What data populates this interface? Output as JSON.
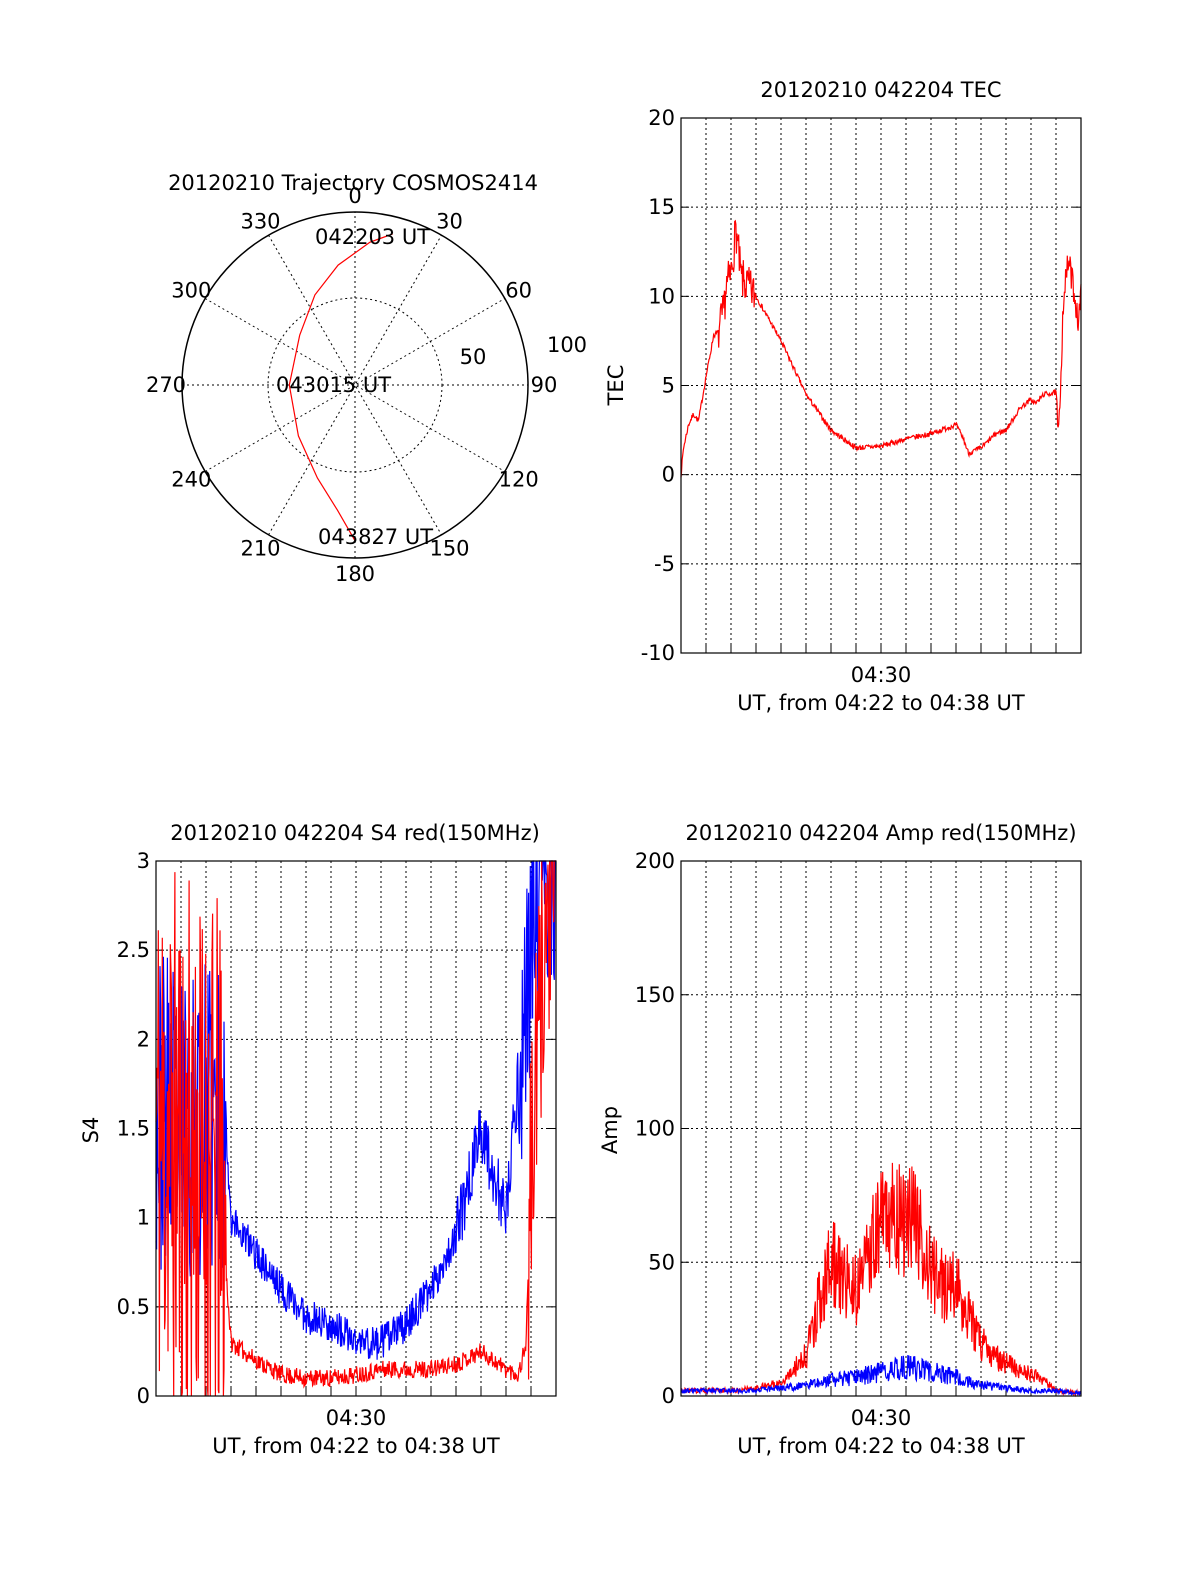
{
  "chart_data": [
    {
      "type": "polar",
      "id": "trajectory",
      "title": "20120210 Trajectory COSMOS2414",
      "azimuth_labels": [
        "0",
        "30",
        "60",
        "90",
        "120",
        "150",
        "180",
        "210",
        "240",
        "270",
        "300",
        "330"
      ],
      "radius_labels": [
        "50",
        "100"
      ],
      "series": [
        {
          "color": "#ff0000",
          "az": [
            14,
            6,
            -8,
            -24,
            -48,
            -90,
            -132,
            -158,
            -172,
            -180
          ],
          "r": [
            90,
            83,
            70,
            57,
            43,
            38,
            44,
            58,
            73,
            90
          ]
        }
      ],
      "annotations": [
        "042203 UT",
        "043015 UT",
        "043827 UT"
      ]
    },
    {
      "type": "line",
      "id": "tec",
      "title": "20120210 042204 TEC",
      "xlabel": "UT, from 04:22 to 04:38 UT",
      "ylabel": "TEC",
      "xtick_label": "04:30",
      "ylim": [
        -10,
        20
      ],
      "yticks": [
        "-10",
        "-5",
        "0",
        "5",
        "10",
        "15",
        "20"
      ],
      "series": [
        {
          "color": "#ff0000",
          "x": [
            0,
            0.1,
            0.3,
            0.5,
            0.7,
            1.0,
            1.2,
            1.3,
            1.5,
            1.7,
            1.8,
            2.0,
            2.2,
            2.4,
            3,
            4,
            5,
            6,
            7,
            8,
            9,
            10,
            11,
            11.3,
            11.5,
            12,
            12.6,
            13,
            13.6,
            14,
            14.2,
            14.5,
            15,
            15.1,
            15.3,
            15.5,
            15.7,
            15.9,
            16.0
          ],
          "y": [
            0,
            1.5,
            2.8,
            3.4,
            3.0,
            5.5,
            7.0,
            7.8,
            8.0,
            9.0,
            10.5,
            11.2,
            13.8,
            11.0,
            10.0,
            7.5,
            4.5,
            2.5,
            1.5,
            1.6,
            2.0,
            2.3,
            2.8,
            2.0,
            1.2,
            1.5,
            2.3,
            2.5,
            3.8,
            4.2,
            4.0,
            4.5,
            4.6,
            1.8,
            10.0,
            12.0,
            10.5,
            8.5,
            10.0
          ]
        }
      ]
    },
    {
      "type": "line",
      "id": "s4",
      "title": "20120210 042204 S4 red(150MHz)",
      "xlabel": "UT, from 04:22 to 04:38 UT",
      "ylabel": "S4",
      "xtick_label": "04:30",
      "ylim": [
        0,
        3
      ],
      "yticks": [
        "0",
        "0.5",
        "1",
        "1.5",
        "2",
        "2.5",
        "3"
      ],
      "series": [
        {
          "color": "#0000ff",
          "x": [
            0,
            2.8,
            3,
            4,
            5,
            6,
            7,
            8,
            9,
            10,
            11,
            12,
            12.5,
            13,
            14,
            14.5,
            15,
            15.5,
            16
          ],
          "y": [
            1.6,
            1.5,
            1.0,
            0.8,
            0.6,
            0.45,
            0.4,
            0.3,
            0.3,
            0.4,
            0.6,
            0.9,
            1.2,
            1.5,
            1.0,
            1.8,
            2.5,
            3.0,
            3.0
          ]
        },
        {
          "color": "#ff0000",
          "x": [
            0,
            2.5,
            2.8,
            3,
            4,
            5,
            6,
            7,
            8,
            9,
            10,
            11,
            12,
            13,
            14,
            14.5,
            14.8,
            15,
            15.5,
            16
          ],
          "y": [
            1.5,
            1.2,
            0.7,
            0.3,
            0.2,
            0.12,
            0.1,
            0.1,
            0.12,
            0.15,
            0.15,
            0.15,
            0.18,
            0.25,
            0.15,
            0.12,
            0.3,
            1.2,
            2.5,
            3.0
          ]
        }
      ]
    },
    {
      "type": "line",
      "id": "amp",
      "title": "20120210 042204 Amp red(150MHz)",
      "xlabel": "UT, from 04:22 to 04:38 UT",
      "ylabel": "Amp",
      "xtick_label": "04:30",
      "ylim": [
        0,
        200
      ],
      "yticks": [
        "0",
        "50",
        "100",
        "150",
        "200"
      ],
      "series": [
        {
          "color": "#ff0000",
          "x": [
            0,
            2,
            3,
            4,
            5,
            5.5,
            6,
            6.5,
            7,
            7.5,
            8,
            8.5,
            9,
            9.5,
            10,
            10.5,
            11,
            11.5,
            12,
            12.5,
            13,
            13.5,
            14,
            14.5,
            15,
            16
          ],
          "y": [
            2,
            2,
            3,
            5,
            15,
            35,
            50,
            45,
            40,
            55,
            65,
            70,
            68,
            60,
            50,
            40,
            42,
            30,
            20,
            15,
            12,
            10,
            8,
            6,
            2,
            1
          ]
        },
        {
          "color": "#0000ff",
          "x": [
            0,
            3,
            4,
            5,
            6,
            7,
            8,
            9,
            10,
            11,
            12,
            13,
            14,
            15,
            16
          ],
          "y": [
            2,
            2,
            3,
            4,
            6,
            7,
            9,
            11,
            9,
            7,
            4,
            3,
            2,
            2,
            1
          ]
        }
      ]
    }
  ]
}
